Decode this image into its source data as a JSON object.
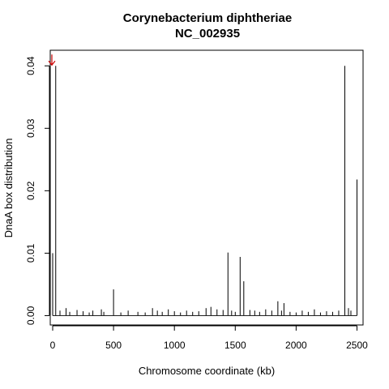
{
  "chart_data": {
    "type": "bar",
    "title": "Corynebacterium diphtheriae",
    "subtitle": "NC_002935",
    "xlabel": "Chromosome coordinate (kb)",
    "ylabel": "DnaA box distribution",
    "xlim": [
      -20,
      2550
    ],
    "ylim": [
      -0.0015,
      0.0425
    ],
    "x_ticks": [
      0,
      500,
      1000,
      1500,
      2000,
      2500
    ],
    "x_tick_labels": [
      "0",
      "500",
      "1000",
      "1500",
      "2000",
      "2500"
    ],
    "y_ticks": [
      0.0,
      0.01,
      0.02,
      0.03,
      0.04
    ],
    "y_tick_labels": [
      "0.00",
      "0.01",
      "0.02",
      "0.03",
      "0.04"
    ],
    "grid": false,
    "legend": "none",
    "bar_style": "vertical lines",
    "bar_color": "#000000",
    "annotation": {
      "type": "arrow",
      "x": 0,
      "y": 0.04,
      "color": "#cc0000"
    },
    "series": [
      {
        "x": [
          0,
          25,
          60,
          110,
          140,
          200,
          250,
          300,
          330,
          400,
          420,
          500,
          560,
          620,
          700,
          760,
          820,
          860,
          900,
          950,
          1000,
          1050,
          1100,
          1150,
          1200,
          1260,
          1300,
          1350,
          1400,
          1440,
          1470,
          1500,
          1540,
          1570,
          1620,
          1660,
          1700,
          1750,
          1800,
          1850,
          1880,
          1900,
          1950,
          2000,
          2050,
          2100,
          2150,
          2200,
          2250,
          2300,
          2350,
          2400,
          2430,
          2450,
          2500
        ],
        "values": [
          0.01,
          0.04,
          0.0008,
          0.0012,
          0.0006,
          0.0009,
          0.0007,
          0.0005,
          0.0008,
          0.001,
          0.0006,
          0.0042,
          0.0005,
          0.0008,
          0.0006,
          0.0005,
          0.0012,
          0.0008,
          0.0006,
          0.001,
          0.0007,
          0.0005,
          0.0008,
          0.0006,
          0.0007,
          0.0012,
          0.0014,
          0.001,
          0.0009,
          0.0101,
          0.0008,
          0.0006,
          0.0094,
          0.0055,
          0.0009,
          0.0008,
          0.0006,
          0.001,
          0.0008,
          0.0023,
          0.0008,
          0.002,
          0.0006,
          0.0005,
          0.0008,
          0.0006,
          0.001,
          0.0005,
          0.0007,
          0.0006,
          0.0008,
          0.04,
          0.0012,
          0.0008,
          0.0218
        ]
      }
    ]
  }
}
